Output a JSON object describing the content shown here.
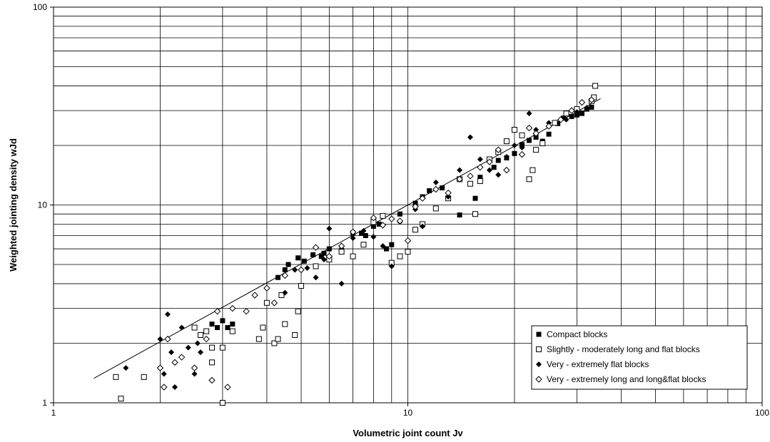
{
  "chart_data": {
    "type": "scatter",
    "title": "",
    "xlabel": "Volumetric joint count  Jv",
    "ylabel": "Weighted jointing density  wJd",
    "xscale": "log",
    "yscale": "log",
    "xlim": [
      1,
      100
    ],
    "ylim": [
      1,
      100
    ],
    "xticks": [
      1,
      10,
      100
    ],
    "yticks": [
      1,
      10,
      100
    ],
    "xtick_labels": [
      "1",
      "10",
      "100"
    ],
    "ytick_labels": [
      "1",
      "10",
      "100"
    ],
    "grid": true,
    "legend_position": "bottom-right",
    "trendline": {
      "x": [
        1.3,
        35
      ],
      "y": [
        1.33,
        34.5
      ]
    },
    "series": [
      {
        "name": "Compact blocks",
        "marker": "filled-square",
        "color": "#000000",
        "points": [
          [
            2.8,
            2.5
          ],
          [
            2.9,
            2.4
          ],
          [
            3.0,
            2.6
          ],
          [
            3.1,
            2.4
          ],
          [
            3.2,
            2.5
          ],
          [
            4.3,
            4.3
          ],
          [
            4.5,
            4.7
          ],
          [
            4.6,
            5.0
          ],
          [
            4.9,
            5.4
          ],
          [
            5.1,
            5.2
          ],
          [
            5.4,
            5.6
          ],
          [
            5.7,
            5.5
          ],
          [
            5.8,
            5.7
          ],
          [
            6.0,
            6.0
          ],
          [
            6.5,
            5.9
          ],
          [
            7.0,
            7.2
          ],
          [
            7.4,
            7.2
          ],
          [
            7.6,
            7.0
          ],
          [
            8.0,
            7.8
          ],
          [
            8.3,
            8.0
          ],
          [
            8.7,
            6.0
          ],
          [
            9.0,
            6.3
          ],
          [
            9.5,
            9.0
          ],
          [
            10.5,
            10.2
          ],
          [
            11.0,
            11.0
          ],
          [
            11.5,
            11.8
          ],
          [
            12.5,
            12.2
          ],
          [
            14.0,
            8.9
          ],
          [
            15.5,
            10.8
          ],
          [
            16.0,
            13.8
          ],
          [
            17.5,
            15.5
          ],
          [
            18.0,
            16.8
          ],
          [
            19.0,
            17.3
          ],
          [
            20.0,
            18.2
          ],
          [
            21.0,
            20.2
          ],
          [
            22.0,
            21.2
          ],
          [
            23.0,
            22.0
          ],
          [
            24.0,
            21.0
          ],
          [
            25.0,
            22.8
          ],
          [
            26.5,
            25.8
          ],
          [
            27.5,
            27.5
          ],
          [
            29.0,
            28.0
          ],
          [
            30.0,
            28.5
          ],
          [
            31.0,
            29.0
          ],
          [
            32.0,
            30.5
          ],
          [
            33.0,
            31.2
          ]
        ]
      },
      {
        "name": "Slightly - moderately long and flat blocks",
        "marker": "open-square",
        "color": "#000000",
        "points": [
          [
            1.5,
            1.35
          ],
          [
            1.55,
            1.05
          ],
          [
            1.8,
            1.35
          ],
          [
            2.5,
            2.4
          ],
          [
            2.6,
            2.2
          ],
          [
            2.7,
            2.3
          ],
          [
            2.8,
            1.6
          ],
          [
            2.8,
            1.9
          ],
          [
            3.0,
            1.0
          ],
          [
            3.0,
            1.9
          ],
          [
            3.2,
            2.3
          ],
          [
            3.8,
            2.1
          ],
          [
            3.9,
            2.4
          ],
          [
            4.0,
            3.2
          ],
          [
            4.2,
            2.0
          ],
          [
            4.3,
            2.1
          ],
          [
            4.4,
            3.5
          ],
          [
            4.5,
            2.5
          ],
          [
            4.8,
            2.2
          ],
          [
            4.9,
            2.9
          ],
          [
            5.0,
            3.9
          ],
          [
            5.5,
            4.9
          ],
          [
            6.0,
            5.3
          ],
          [
            6.5,
            5.8
          ],
          [
            7.0,
            5.5
          ],
          [
            7.5,
            6.3
          ],
          [
            8.0,
            8.2
          ],
          [
            8.5,
            8.8
          ],
          [
            9.0,
            5.1
          ],
          [
            9.5,
            5.5
          ],
          [
            10.0,
            5.8
          ],
          [
            10.5,
            7.5
          ],
          [
            11.0,
            8.0
          ],
          [
            12.0,
            9.6
          ],
          [
            13.0,
            10.8
          ],
          [
            14.0,
            13.5
          ],
          [
            15.0,
            12.8
          ],
          [
            15.5,
            9.0
          ],
          [
            16.0,
            13.2
          ],
          [
            17.0,
            17.0
          ],
          [
            18.0,
            18.5
          ],
          [
            19.0,
            21.0
          ],
          [
            20.0,
            24.0
          ],
          [
            21.0,
            22.5
          ],
          [
            22.0,
            13.5
          ],
          [
            22.5,
            15.0
          ],
          [
            23.0,
            19.0
          ],
          [
            24.0,
            20.5
          ],
          [
            26.0,
            26.0
          ],
          [
            28.0,
            29.0
          ],
          [
            30.0,
            30.5
          ],
          [
            33.0,
            33.5
          ],
          [
            33.5,
            35.0
          ],
          [
            33.8,
            40.0
          ]
        ]
      },
      {
        "name": "Very - extremely flat blocks",
        "marker": "filled-diamond",
        "color": "#000000",
        "points": [
          [
            1.6,
            1.5
          ],
          [
            2.0,
            2.1
          ],
          [
            2.05,
            1.4
          ],
          [
            2.1,
            2.8
          ],
          [
            2.15,
            1.8
          ],
          [
            2.2,
            1.2
          ],
          [
            2.3,
            2.4
          ],
          [
            2.4,
            1.9
          ],
          [
            2.5,
            1.4
          ],
          [
            2.55,
            2.0
          ],
          [
            2.6,
            1.8
          ],
          [
            4.5,
            3.6
          ],
          [
            4.8,
            4.7
          ],
          [
            5.2,
            4.8
          ],
          [
            5.5,
            4.3
          ],
          [
            5.8,
            5.3
          ],
          [
            6.0,
            7.6
          ],
          [
            6.5,
            4.0
          ],
          [
            7.0,
            6.8
          ],
          [
            7.5,
            7.4
          ],
          [
            8.0,
            6.9
          ],
          [
            8.5,
            6.2
          ],
          [
            9.0,
            4.9
          ],
          [
            9.5,
            8.2
          ],
          [
            10.5,
            9.5
          ],
          [
            11.0,
            7.8
          ],
          [
            12.0,
            13.0
          ],
          [
            13.0,
            11.0
          ],
          [
            14.0,
            15.0
          ],
          [
            15.0,
            22.0
          ],
          [
            16.0,
            17.0
          ],
          [
            17.0,
            15.0
          ],
          [
            18.0,
            14.2
          ],
          [
            19.0,
            17.5
          ],
          [
            20.0,
            20.0
          ],
          [
            21.0,
            19.5
          ],
          [
            22.0,
            29.0
          ],
          [
            23.0,
            24.0
          ],
          [
            25.0,
            26.0
          ],
          [
            28.0,
            27.0
          ],
          [
            30.0,
            29.5
          ],
          [
            32.0,
            31.0
          ]
        ]
      },
      {
        "name": "Very - extremely long and long&flat blocks",
        "marker": "open-diamond",
        "color": "#000000",
        "points": [
          [
            2.0,
            1.5
          ],
          [
            2.05,
            1.2
          ],
          [
            2.1,
            2.1
          ],
          [
            2.2,
            1.6
          ],
          [
            2.3,
            1.7
          ],
          [
            2.5,
            1.5
          ],
          [
            2.7,
            2.1
          ],
          [
            2.8,
            1.3
          ],
          [
            2.9,
            2.9
          ],
          [
            3.1,
            1.2
          ],
          [
            3.2,
            3.0
          ],
          [
            3.5,
            2.9
          ],
          [
            3.7,
            3.5
          ],
          [
            4.0,
            3.8
          ],
          [
            4.2,
            3.2
          ],
          [
            4.5,
            4.4
          ],
          [
            5.0,
            4.7
          ],
          [
            5.5,
            6.1
          ],
          [
            6.0,
            5.5
          ],
          [
            6.5,
            6.2
          ],
          [
            7.0,
            7.3
          ],
          [
            8.0,
            8.6
          ],
          [
            8.5,
            7.9
          ],
          [
            9.0,
            8.5
          ],
          [
            9.5,
            8.3
          ],
          [
            10.0,
            6.6
          ],
          [
            10.5,
            9.8
          ],
          [
            11.0,
            10.8
          ],
          [
            12.0,
            12.0
          ],
          [
            13.0,
            11.5
          ],
          [
            14.0,
            13.5
          ],
          [
            15.0,
            14.0
          ],
          [
            16.0,
            15.5
          ],
          [
            17.0,
            16.5
          ],
          [
            18.0,
            19.0
          ],
          [
            19.0,
            15.0
          ],
          [
            21.0,
            18.0
          ],
          [
            22.0,
            24.5
          ],
          [
            23.0,
            23.0
          ],
          [
            25.0,
            25.0
          ],
          [
            27.0,
            27.0
          ],
          [
            29.0,
            30.0
          ],
          [
            31.0,
            33.0
          ],
          [
            33.0,
            34.0
          ]
        ]
      }
    ]
  }
}
